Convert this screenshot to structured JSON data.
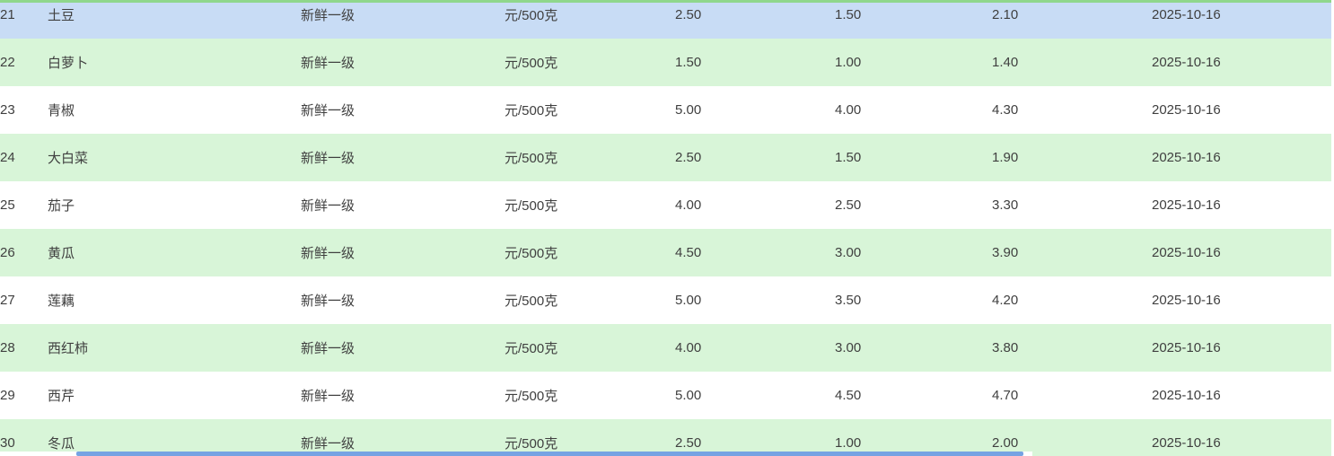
{
  "colors": {
    "selected_row": "#c8dcf5",
    "stripe_row": "#d8f5d8",
    "scrollbar_thumb": "#76a3e3",
    "top_edge": "#8fd78c",
    "text": "#3f3f3f"
  },
  "table": {
    "rows": [
      {
        "variant": "selected",
        "no": "21",
        "name": "土豆",
        "grade": "新鲜一级",
        "unit": "元/500克",
        "price1": "2.50",
        "price2": "1.50",
        "price3": "2.10",
        "date": "2025-10-16"
      },
      {
        "variant": "stripe",
        "no": "22",
        "name": "白萝卜",
        "grade": "新鲜一级",
        "unit": "元/500克",
        "price1": "1.50",
        "price2": "1.00",
        "price3": "1.40",
        "date": "2025-10-16"
      },
      {
        "variant": "plain",
        "no": "23",
        "name": "青椒",
        "grade": "新鲜一级",
        "unit": "元/500克",
        "price1": "5.00",
        "price2": "4.00",
        "price3": "4.30",
        "date": "2025-10-16"
      },
      {
        "variant": "stripe",
        "no": "24",
        "name": "大白菜",
        "grade": "新鲜一级",
        "unit": "元/500克",
        "price1": "2.50",
        "price2": "1.50",
        "price3": "1.90",
        "date": "2025-10-16"
      },
      {
        "variant": "plain",
        "no": "25",
        "name": "茄子",
        "grade": "新鲜一级",
        "unit": "元/500克",
        "price1": "4.00",
        "price2": "2.50",
        "price3": "3.30",
        "date": "2025-10-16"
      },
      {
        "variant": "stripe",
        "no": "26",
        "name": "黄瓜",
        "grade": "新鲜一级",
        "unit": "元/500克",
        "price1": "4.50",
        "price2": "3.00",
        "price3": "3.90",
        "date": "2025-10-16"
      },
      {
        "variant": "plain",
        "no": "27",
        "name": "莲藕",
        "grade": "新鲜一级",
        "unit": "元/500克",
        "price1": "5.00",
        "price2": "3.50",
        "price3": "4.20",
        "date": "2025-10-16"
      },
      {
        "variant": "stripe",
        "no": "28",
        "name": "西红柿",
        "grade": "新鲜一级",
        "unit": "元/500克",
        "price1": "4.00",
        "price2": "3.00",
        "price3": "3.80",
        "date": "2025-10-16"
      },
      {
        "variant": "plain",
        "no": "29",
        "name": "西芹",
        "grade": "新鲜一级",
        "unit": "元/500克",
        "price1": "5.00",
        "price2": "4.50",
        "price3": "4.70",
        "date": "2025-10-16"
      },
      {
        "variant": "stripe",
        "no": "30",
        "name": "冬瓜",
        "grade": "新鲜一级",
        "unit": "元/500克",
        "price1": "2.50",
        "price2": "1.00",
        "price3": "2.00",
        "date": "2025-10-16"
      }
    ]
  }
}
